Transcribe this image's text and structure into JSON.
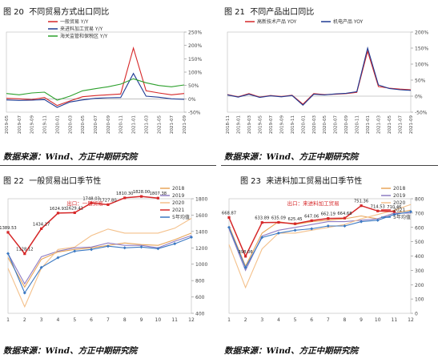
{
  "panels": [
    {
      "fig_label": "图 20",
      "fig_title": "不同贸易方式出口同比",
      "source": "数据来源：Wind、方正中期研究院"
    },
    {
      "fig_label": "图 21",
      "fig_title": "不同产品出口同比",
      "source": "数据来源：Wind、方正中期研究院"
    },
    {
      "fig_label": "图 22",
      "fig_title": "一般贸易出口季节性",
      "source": "数据来源：Wind、方正中期研究院"
    },
    {
      "fig_label": "图 23",
      "fig_title": "来进料加工贸易出口季节性",
      "source": "数据来源：Wind、方正中期研究院"
    }
  ],
  "chart_data": [
    {
      "type": "line",
      "title": "",
      "x": [
        "2019-05",
        "2019-07",
        "2019-09",
        "2019-11",
        "2020-01",
        "2020-03",
        "2020-05",
        "2020-07",
        "2020-09",
        "2020-11",
        "2021-01",
        "2021-03",
        "2021-05",
        "2021-07",
        "2021-09"
      ],
      "ylim": [
        -50,
        250
      ],
      "yticks": [
        "250%",
        "200%",
        "150%",
        "100%",
        "50%",
        "0%",
        "-50%"
      ],
      "legend_position": "top-left",
      "series": [
        {
          "name": "一般贸易 Y/Y",
          "color": "#d62728",
          "values": [
            2,
            0,
            -3,
            5,
            -25,
            -8,
            8,
            12,
            15,
            18,
            190,
            30,
            22,
            15,
            20
          ]
        },
        {
          "name": "来进料加工贸易 Y/Y",
          "color": "#1f3a93",
          "values": [
            -4,
            -6,
            -5,
            -3,
            -32,
            -12,
            -4,
            2,
            4,
            5,
            95,
            10,
            6,
            0,
            -2
          ]
        },
        {
          "name": "海关监管和保税区 Y/Y",
          "color": "#2ca02c",
          "values": [
            20,
            15,
            22,
            25,
            -5,
            10,
            30,
            38,
            45,
            55,
            75,
            60,
            50,
            45,
            52
          ]
        }
      ]
    },
    {
      "type": "line",
      "title": "",
      "x": [
        "2018-11",
        "2019-01",
        "2019-03",
        "2019-05",
        "2019-07",
        "2019-09",
        "2019-11",
        "2020-01",
        "2020-03",
        "2020-05",
        "2020-07",
        "2020-09",
        "2020-11",
        "2021-01",
        "2021-03",
        "2021-05",
        "2021-07",
        "2021-09"
      ],
      "ylim": [
        -50,
        200
      ],
      "yticks": [
        "200%",
        "150%",
        "100%",
        "50%",
        "0%",
        "-50%"
      ],
      "legend_position": "top",
      "series": [
        {
          "name": "高新技术产品 YOY",
          "color": "#d62728",
          "values": [
            5,
            -2,
            8,
            -3,
            2,
            -1,
            3,
            -25,
            8,
            5,
            6,
            8,
            12,
            140,
            30,
            25,
            22,
            20
          ]
        },
        {
          "name": "机电产品 YOY",
          "color": "#1f3a93",
          "values": [
            4,
            -3,
            6,
            -4,
            1,
            -2,
            2,
            -28,
            6,
            4,
            7,
            9,
            14,
            150,
            35,
            24,
            20,
            18
          ]
        }
      ]
    },
    {
      "type": "line",
      "title": "",
      "annotation": "出口：一般贸易",
      "categories": [
        "1",
        "2",
        "3",
        "4",
        "5",
        "6",
        "7",
        "8",
        "9",
        "10",
        "11",
        "12"
      ],
      "ylim": [
        400,
        1800
      ],
      "yticks": [
        "1800",
        "1600",
        "1400",
        "1200",
        "1000",
        "800",
        "600",
        "400"
      ],
      "data_labels": [
        "1389.53",
        "1128.12",
        "1434.17",
        "1624.93",
        "1629.41",
        "1748.03",
        "1727.80",
        "1810.30",
        "1828.00",
        "1807.38"
      ],
      "legend_position": "top-right",
      "series": [
        {
          "name": "2018",
          "color": "#e8a65a",
          "values": [
            1080,
            720,
            1060,
            1150,
            1180,
            1200,
            1230,
            1260,
            1240,
            1230,
            1300,
            1380
          ]
        },
        {
          "name": "2019",
          "color": "#8e7cc3",
          "values": [
            1130,
            760,
            1090,
            1160,
            1200,
            1210,
            1260,
            1230,
            1230,
            1200,
            1280,
            1350
          ]
        },
        {
          "name": "2020",
          "color": "#f4c08a",
          "values": [
            950,
            480,
            950,
            1180,
            1210,
            1350,
            1430,
            1380,
            1380,
            1380,
            1440,
            1560
          ]
        },
        {
          "name": "2021",
          "color": "#d62728",
          "values": [
            1389.53,
            1128.12,
            1434.17,
            1624.93,
            1629.41,
            1748.03,
            1727.8,
            1810.3,
            1828.0,
            1807.38,
            null,
            null
          ]
        },
        {
          "name": "5年均值",
          "color": "#3a78c2",
          "values": [
            1130,
            650,
            960,
            1080,
            1160,
            1180,
            1220,
            1200,
            1210,
            1190,
            1250,
            1330
          ]
        }
      ]
    },
    {
      "type": "line",
      "title": "",
      "annotation": "出口：来进料加工贸易",
      "categories": [
        "1",
        "2",
        "3",
        "4",
        "5",
        "6",
        "7",
        "8",
        "9",
        "10",
        "11",
        "12"
      ],
      "ylim": [
        0,
        800
      ],
      "yticks": [
        "800",
        "700",
        "600",
        "500",
        "400",
        "300",
        "200",
        "100",
        "0"
      ],
      "data_labels": [
        "668.87",
        "398.06",
        "633.89",
        "635.09",
        "625.45",
        "647.06",
        "662.19",
        "664.68",
        "751.36",
        "714.53",
        "710.46"
      ],
      "legend_position": "top-right",
      "series": [
        {
          "name": "2018",
          "color": "#e8a65a",
          "values": [
            610,
            330,
            560,
            640,
            620,
            640,
            650,
            660,
            680,
            660,
            700,
            720
          ]
        },
        {
          "name": "2019",
          "color": "#8e7cc3",
          "values": [
            590,
            300,
            540,
            580,
            600,
            620,
            640,
            640,
            650,
            660,
            700,
            700
          ]
        },
        {
          "name": "2020",
          "color": "#f4c08a",
          "values": [
            480,
            180,
            450,
            560,
            560,
            580,
            600,
            620,
            660,
            690,
            720,
            760
          ]
        },
        {
          "name": "2021",
          "color": "#d62728",
          "values": [
            668.87,
            398.06,
            633.89,
            635.09,
            625.45,
            647.06,
            662.19,
            664.68,
            751.36,
            714.53,
            710.46,
            null
          ]
        },
        {
          "name": "5年均值",
          "color": "#3a78c2",
          "values": [
            600,
            320,
            530,
            560,
            580,
            590,
            610,
            610,
            640,
            650,
            690,
            710
          ]
        }
      ]
    }
  ]
}
